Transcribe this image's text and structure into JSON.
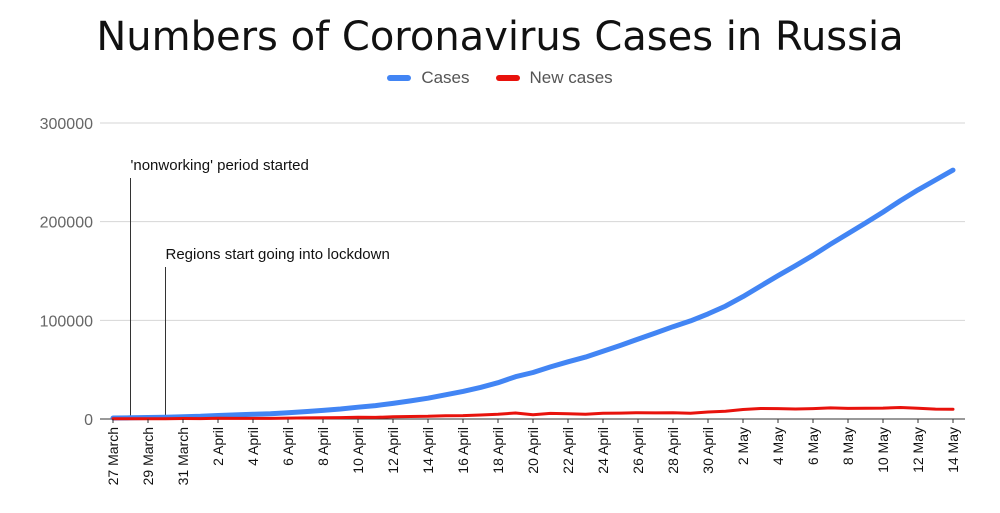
{
  "chart_data": {
    "type": "line",
    "title": "Numbers of Coronavirus Cases in Russia",
    "xlabel": "",
    "ylabel": "",
    "ylim": [
      0,
      300000
    ],
    "yticks": [
      "0",
      "100000",
      "200000",
      "300000"
    ],
    "grid": true,
    "legend_position": "top",
    "categories": [
      "27 March",
      "28 March",
      "29 March",
      "30 March",
      "31 March",
      "1 April",
      "2 April",
      "3 April",
      "4 April",
      "5 April",
      "6 April",
      "7 April",
      "8 April",
      "9 April",
      "10 April",
      "11 April",
      "12 April",
      "13 April",
      "14 April",
      "15 April",
      "16 April",
      "17 April",
      "18 April",
      "19 April",
      "20 April",
      "21 April",
      "22 April",
      "23 April",
      "24 April",
      "25 April",
      "26 April",
      "27 April",
      "28 April",
      "29 April",
      "30 April",
      "1 May",
      "2 May",
      "3 May",
      "4 May",
      "5 May",
      "6 May",
      "7 May",
      "8 May",
      "9 May",
      "10 May",
      "11 May",
      "12 May",
      "13 May",
      "14 May"
    ],
    "tick_labels": [
      "27 March",
      "29 March",
      "31 March",
      "2 April",
      "4 April",
      "6 April",
      "8 April",
      "10 April",
      "12 April",
      "14 April",
      "16 April",
      "18 April",
      "20 April",
      "22 April",
      "24 April",
      "26 April",
      "28 April",
      "30 April",
      "2 May",
      "4 May",
      "6 May",
      "8 May",
      "10 May",
      "12 May",
      "14 May"
    ],
    "series": [
      {
        "name": "Cases",
        "color": "#4285f4",
        "values": [
          1036,
          1264,
          1534,
          1836,
          2337,
          2777,
          3548,
          4149,
          4731,
          5389,
          6343,
          7497,
          8672,
          10131,
          11917,
          13584,
          15770,
          18328,
          21102,
          24490,
          27938,
          32008,
          36793,
          42853,
          47121,
          52763,
          57999,
          62773,
          68622,
          74588,
          80949,
          87147,
          93558,
          99399,
          106498,
          114431,
          124054,
          134686,
          145268,
          155370,
          165929,
          177160,
          187859,
          198676,
          209688,
          221344,
          232243,
          242271,
          252245
        ]
      },
      {
        "name": "New cases",
        "color": "#e8120c",
        "values": [
          196,
          228,
          270,
          302,
          501,
          440,
          771,
          601,
          582,
          658,
          954,
          1154,
          1175,
          1459,
          1786,
          1667,
          2186,
          2558,
          2774,
          3388,
          3448,
          4070,
          4785,
          6060,
          4268,
          5642,
          5236,
          4774,
          5849,
          5966,
          6361,
          6198,
          6411,
          5841,
          7099,
          7933,
          9623,
          10633,
          10581,
          10102,
          10559,
          11231,
          10699,
          10817,
          11012,
          11656,
          10899,
          10028,
          9974
        ]
      }
    ],
    "annotations": [
      {
        "text": "'nonworking' period started",
        "at": "28 March"
      },
      {
        "text": "Regions start going into lockdown",
        "at": "30 March"
      }
    ]
  }
}
